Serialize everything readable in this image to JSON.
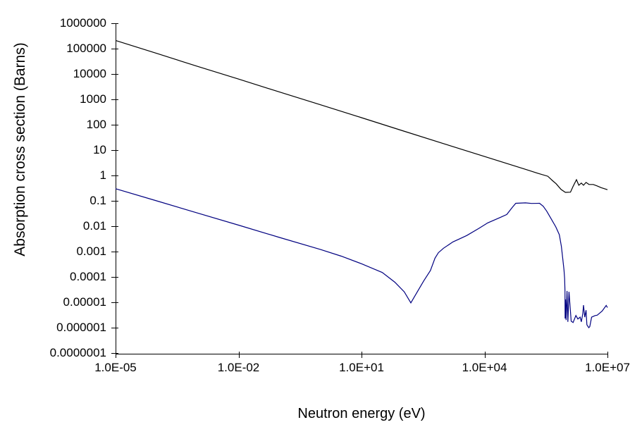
{
  "chart_data": {
    "type": "line",
    "title": "",
    "xlabel": "Neutron energy (eV)",
    "ylabel": "Absorption cross section (Barns)",
    "x_scale": "log",
    "y_scale": "log",
    "xlim": [
      1e-05,
      10000000.0
    ],
    "ylim": [
      1e-07,
      1000000.0
    ],
    "grid": false,
    "legend": "none",
    "x_tick_labels": [
      "1.0E-05",
      "1.0E-02",
      "1.0E+01",
      "1.0E+04",
      "1.0E+07"
    ],
    "x_tick_values": [
      1e-05,
      0.01,
      10.0,
      10000.0,
      10000000.0
    ],
    "y_tick_labels": [
      "1000000",
      "100000",
      "10000",
      "1000",
      "100",
      "10",
      "1",
      "0.1",
      "0.01",
      "0.001",
      "0.0001",
      "0.00001",
      "0.000001",
      "0.0000001"
    ],
    "y_tick_values": [
      1000000.0,
      100000.0,
      10000.0,
      1000.0,
      100.0,
      10.0,
      1,
      0.1,
      0.01,
      0.001,
      0.0001,
      1e-05,
      1e-06,
      1e-07
    ],
    "axis_color": "#000000",
    "series": [
      {
        "name": "upper-curve",
        "color": "#000000",
        "points": [
          [
            1e-05,
            210000.0
          ],
          [
            0.0001,
            65000.0
          ],
          [
            0.001,
            20000.0
          ],
          [
            0.01,
            6300.0
          ],
          [
            0.1,
            1950.0
          ],
          [
            1.0,
            610.0
          ],
          [
            10.0,
            190.0
          ],
          [
            100.0,
            58
          ],
          [
            1000.0,
            18
          ],
          [
            10000.0,
            5.6
          ],
          [
            100000.0,
            1.74
          ],
          [
            200000.0,
            1.22
          ],
          [
            350000.0,
            0.93
          ],
          [
            460000.0,
            0.62
          ],
          [
            560000.0,
            0.47
          ],
          [
            740000.0,
            0.28
          ],
          [
            940000.0,
            0.215
          ],
          [
            1250000.0,
            0.22
          ],
          [
            1450000.0,
            0.37
          ],
          [
            1750000.0,
            0.68
          ],
          [
            2000000.0,
            0.41
          ],
          [
            2300000.0,
            0.5
          ],
          [
            2600000.0,
            0.41
          ],
          [
            3000000.0,
            0.53
          ],
          [
            3550000.0,
            0.44
          ],
          [
            4500000.0,
            0.44
          ],
          [
            5500000.0,
            0.39
          ],
          [
            7000000.0,
            0.33
          ],
          [
            10000000.0,
            0.275
          ]
        ]
      },
      {
        "name": "lower-curve",
        "color": "#000080",
        "points": [
          [
            1e-05,
            0.3
          ],
          [
            0.0001,
            0.1
          ],
          [
            0.001,
            0.033
          ],
          [
            0.01,
            0.011
          ],
          [
            0.1,
            0.0036
          ],
          [
            1.0,
            0.0012
          ],
          [
            3.2,
            0.00066
          ],
          [
            10,
            0.00033
          ],
          [
            32,
            0.00015
          ],
          [
            65,
            6.2e-05
          ],
          [
            110,
            2.6e-05
          ],
          [
            160,
            9.5e-06
          ],
          [
            230,
            2.6e-05
          ],
          [
            330,
            7e-05
          ],
          [
            480,
            0.00018
          ],
          [
            620,
            0.00055
          ],
          [
            750,
            0.0009
          ],
          [
            1000.0,
            0.00135
          ],
          [
            1700.0,
            0.0024
          ],
          [
            2500.0,
            0.0032
          ],
          [
            3700.0,
            0.0043
          ],
          [
            7300.0,
            0.0082
          ],
          [
            12000.0,
            0.0135
          ],
          [
            24000.0,
            0.022
          ],
          [
            35000.0,
            0.029
          ],
          [
            48000.0,
            0.056
          ],
          [
            58000.0,
            0.08
          ],
          [
            100000.0,
            0.083
          ],
          [
            140000.0,
            0.079
          ],
          [
            220000.0,
            0.08
          ],
          [
            270000.0,
            0.061
          ],
          [
            330000.0,
            0.039
          ],
          [
            420000.0,
            0.02
          ],
          [
            550000.0,
            0.0094
          ],
          [
            670000.0,
            0.0046
          ],
          [
            750000.0,
            0.0016
          ],
          [
            810000.0,
            0.00054
          ],
          [
            870000.0,
            0.00019
          ],
          [
            900000.0,
            8.8e-05
          ],
          [
            920000.0,
            2.8e-05
          ],
          [
            925000.0,
            2.3e-06
          ],
          [
            950000.0,
            1.3e-05
          ],
          [
            980000.0,
            2e-06
          ],
          [
            1030000.0,
            2.8e-05
          ],
          [
            1080000.0,
            1.7e-06
          ],
          [
            1150000.0,
            2.6e-05
          ],
          [
            1300000.0,
            1.8e-06
          ],
          [
            1450000.0,
            1.6e-06
          ],
          [
            1700000.0,
            3e-06
          ],
          [
            1900000.0,
            2.2e-06
          ],
          [
            2150000.0,
            2.6e-06
          ],
          [
            2300000.0,
            1.7e-06
          ],
          [
            2500000.0,
            3.6e-06
          ],
          [
            2600000.0,
            7.7e-06
          ],
          [
            2800000.0,
            2.6e-06
          ],
          [
            3000000.0,
            4.9e-06
          ],
          [
            3150000.0,
            1.3e-06
          ],
          [
            3500000.0,
            1e-06
          ],
          [
            3700000.0,
            1.1e-06
          ],
          [
            4100000.0,
            2.6e-06
          ],
          [
            5000000.0,
            3e-06
          ],
          [
            5600000.0,
            3.1e-06
          ],
          [
            7400000.0,
            4.5e-06
          ],
          [
            9300000.0,
            7.5e-06
          ],
          [
            10000000.0,
            6.2e-06
          ]
        ]
      }
    ]
  }
}
